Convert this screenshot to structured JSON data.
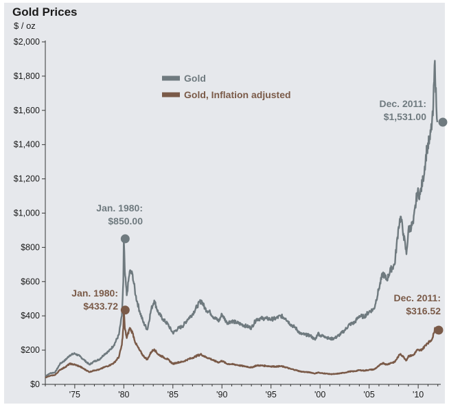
{
  "title": "Gold Prices",
  "subtitle": "$ / oz",
  "colors": {
    "gold": "#6f7a7f",
    "gold_inflation_adjusted": "#7a5a48",
    "background": "#e6e8ec",
    "axis": "#333333"
  },
  "chart_data": {
    "type": "line",
    "title": "Gold Prices",
    "ylabel": "$ / oz",
    "xlabel": "",
    "xlim": [
      1972,
      2012.3
    ],
    "ylim": [
      0,
      2000
    ],
    "grid": false,
    "legend_position": "top-center",
    "y_ticks": [
      {
        "value": 0,
        "label": "$0"
      },
      {
        "value": 200,
        "label": "$200"
      },
      {
        "value": 400,
        "label": "$400"
      },
      {
        "value": 600,
        "label": "$600"
      },
      {
        "value": 800,
        "label": "$800"
      },
      {
        "value": 1000,
        "label": "$1,000"
      },
      {
        "value": 1200,
        "label": "$1,200"
      },
      {
        "value": 1400,
        "label": "$1,400"
      },
      {
        "value": 1600,
        "label": "$1,600"
      },
      {
        "value": 1800,
        "label": "$1,800"
      },
      {
        "value": 2000,
        "label": "$2,000"
      }
    ],
    "x_ticks": [
      {
        "value": 1975,
        "label": "'75"
      },
      {
        "value": 1980,
        "label": "'80"
      },
      {
        "value": 1985,
        "label": "'85"
      },
      {
        "value": 1990,
        "label": "'90"
      },
      {
        "value": 1995,
        "label": "'95"
      },
      {
        "value": 2000,
        "label": "'00"
      },
      {
        "value": 2005,
        "label": "'05"
      },
      {
        "value": 2010,
        "label": "'10"
      }
    ],
    "series": [
      {
        "name": "Gold",
        "color": "#6f7a7f",
        "points": [
          [
            1972.0,
            48
          ],
          [
            1972.5,
            65
          ],
          [
            1973.0,
            70
          ],
          [
            1973.5,
            120
          ],
          [
            1974.0,
            140
          ],
          [
            1974.5,
            170
          ],
          [
            1975.0,
            180
          ],
          [
            1975.5,
            165
          ],
          [
            1976.0,
            140
          ],
          [
            1976.5,
            115
          ],
          [
            1977.0,
            135
          ],
          [
            1977.5,
            145
          ],
          [
            1978.0,
            175
          ],
          [
            1978.5,
            195
          ],
          [
            1979.0,
            230
          ],
          [
            1979.5,
            290
          ],
          [
            1979.8,
            400
          ],
          [
            1979.95,
            600
          ],
          [
            1980.0,
            850
          ],
          [
            1980.1,
            660
          ],
          [
            1980.3,
            520
          ],
          [
            1980.6,
            660
          ],
          [
            1980.9,
            640
          ],
          [
            1981.2,
            520
          ],
          [
            1981.6,
            430
          ],
          [
            1982.0,
            360
          ],
          [
            1982.4,
            320
          ],
          [
            1982.8,
            440
          ],
          [
            1983.1,
            490
          ],
          [
            1983.5,
            420
          ],
          [
            1984.0,
            380
          ],
          [
            1984.5,
            350
          ],
          [
            1985.0,
            300
          ],
          [
            1985.5,
            325
          ],
          [
            1986.0,
            340
          ],
          [
            1986.5,
            380
          ],
          [
            1987.0,
            410
          ],
          [
            1987.5,
            460
          ],
          [
            1987.9,
            490
          ],
          [
            1988.3,
            440
          ],
          [
            1988.8,
            420
          ],
          [
            1989.2,
            390
          ],
          [
            1989.7,
            370
          ],
          [
            1990.0,
            410
          ],
          [
            1990.5,
            360
          ],
          [
            1991.0,
            370
          ],
          [
            1991.5,
            360
          ],
          [
            1992.0,
            350
          ],
          [
            1992.5,
            340
          ],
          [
            1993.0,
            330
          ],
          [
            1993.5,
            380
          ],
          [
            1994.0,
            385
          ],
          [
            1994.5,
            385
          ],
          [
            1995.0,
            380
          ],
          [
            1995.5,
            385
          ],
          [
            1996.0,
            400
          ],
          [
            1996.5,
            385
          ],
          [
            1997.0,
            350
          ],
          [
            1997.5,
            330
          ],
          [
            1998.0,
            295
          ],
          [
            1998.5,
            290
          ],
          [
            1999.0,
            285
          ],
          [
            1999.5,
            260
          ],
          [
            1999.8,
            300
          ],
          [
            2000.0,
            285
          ],
          [
            2000.5,
            280
          ],
          [
            2001.0,
            265
          ],
          [
            2001.5,
            270
          ],
          [
            2002.0,
            290
          ],
          [
            2002.5,
            315
          ],
          [
            2003.0,
            350
          ],
          [
            2003.5,
            360
          ],
          [
            2004.0,
            400
          ],
          [
            2004.5,
            395
          ],
          [
            2005.0,
            425
          ],
          [
            2005.5,
            440
          ],
          [
            2006.0,
            560
          ],
          [
            2006.4,
            650
          ],
          [
            2006.8,
            610
          ],
          [
            2007.2,
            670
          ],
          [
            2007.6,
            700
          ],
          [
            2008.0,
            920
          ],
          [
            2008.2,
            980
          ],
          [
            2008.5,
            880
          ],
          [
            2008.8,
            760
          ],
          [
            2009.0,
            900
          ],
          [
            2009.5,
            940
          ],
          [
            2009.9,
            1120
          ],
          [
            2010.2,
            1110
          ],
          [
            2010.5,
            1200
          ],
          [
            2010.9,
            1380
          ],
          [
            2011.2,
            1430
          ],
          [
            2011.5,
            1570
          ],
          [
            2011.7,
            1890
          ],
          [
            2011.85,
            1620
          ],
          [
            2011.95,
            1531
          ]
        ]
      },
      {
        "name": "Gold, Inflation adjusted",
        "color": "#7a5a48",
        "points": [
          [
            1972.0,
            40
          ],
          [
            1972.5,
            50
          ],
          [
            1973.0,
            55
          ],
          [
            1973.5,
            85
          ],
          [
            1974.0,
            100
          ],
          [
            1974.5,
            120
          ],
          [
            1975.0,
            115
          ],
          [
            1975.5,
            105
          ],
          [
            1976.0,
            88
          ],
          [
            1976.5,
            72
          ],
          [
            1977.0,
            82
          ],
          [
            1977.5,
            86
          ],
          [
            1978.0,
            100
          ],
          [
            1978.5,
            110
          ],
          [
            1979.0,
            125
          ],
          [
            1979.5,
            160
          ],
          [
            1979.8,
            230
          ],
          [
            1979.95,
            330
          ],
          [
            1980.0,
            433.72
          ],
          [
            1980.1,
            330
          ],
          [
            1980.3,
            270
          ],
          [
            1980.6,
            330
          ],
          [
            1980.9,
            300
          ],
          [
            1981.2,
            240
          ],
          [
            1981.6,
            200
          ],
          [
            1982.0,
            165
          ],
          [
            1982.4,
            145
          ],
          [
            1982.8,
            190
          ],
          [
            1983.1,
            205
          ],
          [
            1983.5,
            175
          ],
          [
            1984.0,
            160
          ],
          [
            1984.5,
            145
          ],
          [
            1985.0,
            120
          ],
          [
            1985.5,
            128
          ],
          [
            1986.0,
            132
          ],
          [
            1986.5,
            145
          ],
          [
            1987.0,
            155
          ],
          [
            1987.5,
            168
          ],
          [
            1987.9,
            175
          ],
          [
            1988.3,
            160
          ],
          [
            1988.8,
            150
          ],
          [
            1989.2,
            138
          ],
          [
            1989.7,
            128
          ],
          [
            1990.0,
            138
          ],
          [
            1990.5,
            120
          ],
          [
            1991.0,
            118
          ],
          [
            1991.5,
            114
          ],
          [
            1992.0,
            108
          ],
          [
            1992.5,
            104
          ],
          [
            1993.0,
            98
          ],
          [
            1993.5,
            110
          ],
          [
            1994.0,
            110
          ],
          [
            1994.5,
            108
          ],
          [
            1995.0,
            105
          ],
          [
            1995.5,
            104
          ],
          [
            1996.0,
            106
          ],
          [
            1996.5,
            100
          ],
          [
            1997.0,
            90
          ],
          [
            1997.5,
            84
          ],
          [
            1998.0,
            75
          ],
          [
            1998.5,
            72
          ],
          [
            1999.0,
            70
          ],
          [
            1999.5,
            63
          ],
          [
            1999.8,
            70
          ],
          [
            2000.0,
            66
          ],
          [
            2000.5,
            64
          ],
          [
            2001.0,
            60
          ],
          [
            2001.5,
            60
          ],
          [
            2002.0,
            64
          ],
          [
            2002.5,
            68
          ],
          [
            2003.0,
            75
          ],
          [
            2003.5,
            76
          ],
          [
            2004.0,
            83
          ],
          [
            2004.5,
            80
          ],
          [
            2005.0,
            85
          ],
          [
            2005.5,
            87
          ],
          [
            2006.0,
            108
          ],
          [
            2006.4,
            125
          ],
          [
            2006.8,
            115
          ],
          [
            2007.2,
            125
          ],
          [
            2007.6,
            130
          ],
          [
            2008.0,
            165
          ],
          [
            2008.2,
            178
          ],
          [
            2008.5,
            160
          ],
          [
            2008.8,
            140
          ],
          [
            2009.0,
            165
          ],
          [
            2009.5,
            170
          ],
          [
            2009.9,
            200
          ],
          [
            2010.2,
            198
          ],
          [
            2010.5,
            210
          ],
          [
            2010.9,
            240
          ],
          [
            2011.2,
            250
          ],
          [
            2011.5,
            275
          ],
          [
            2011.7,
            330
          ],
          [
            2011.85,
            300
          ],
          [
            2011.95,
            316.52
          ]
        ]
      }
    ],
    "annotations": [
      {
        "series": "Gold",
        "x": 1980.0,
        "y": 850,
        "lines": [
          "Jan. 1980:",
          "$850.00"
        ]
      },
      {
        "series": "Gold, Inflation adjusted",
        "x": 1980.0,
        "y": 433.72,
        "lines": [
          "Jan. 1980:",
          "$433.72"
        ]
      },
      {
        "series": "Gold",
        "x": 2011.95,
        "y": 1531,
        "lines": [
          "Dec. 2011:",
          "$1,531.00"
        ]
      },
      {
        "series": "Gold, Inflation adjusted",
        "x": 2011.95,
        "y": 316.52,
        "lines": [
          "Dec. 2011:",
          "$316.52"
        ]
      }
    ]
  }
}
